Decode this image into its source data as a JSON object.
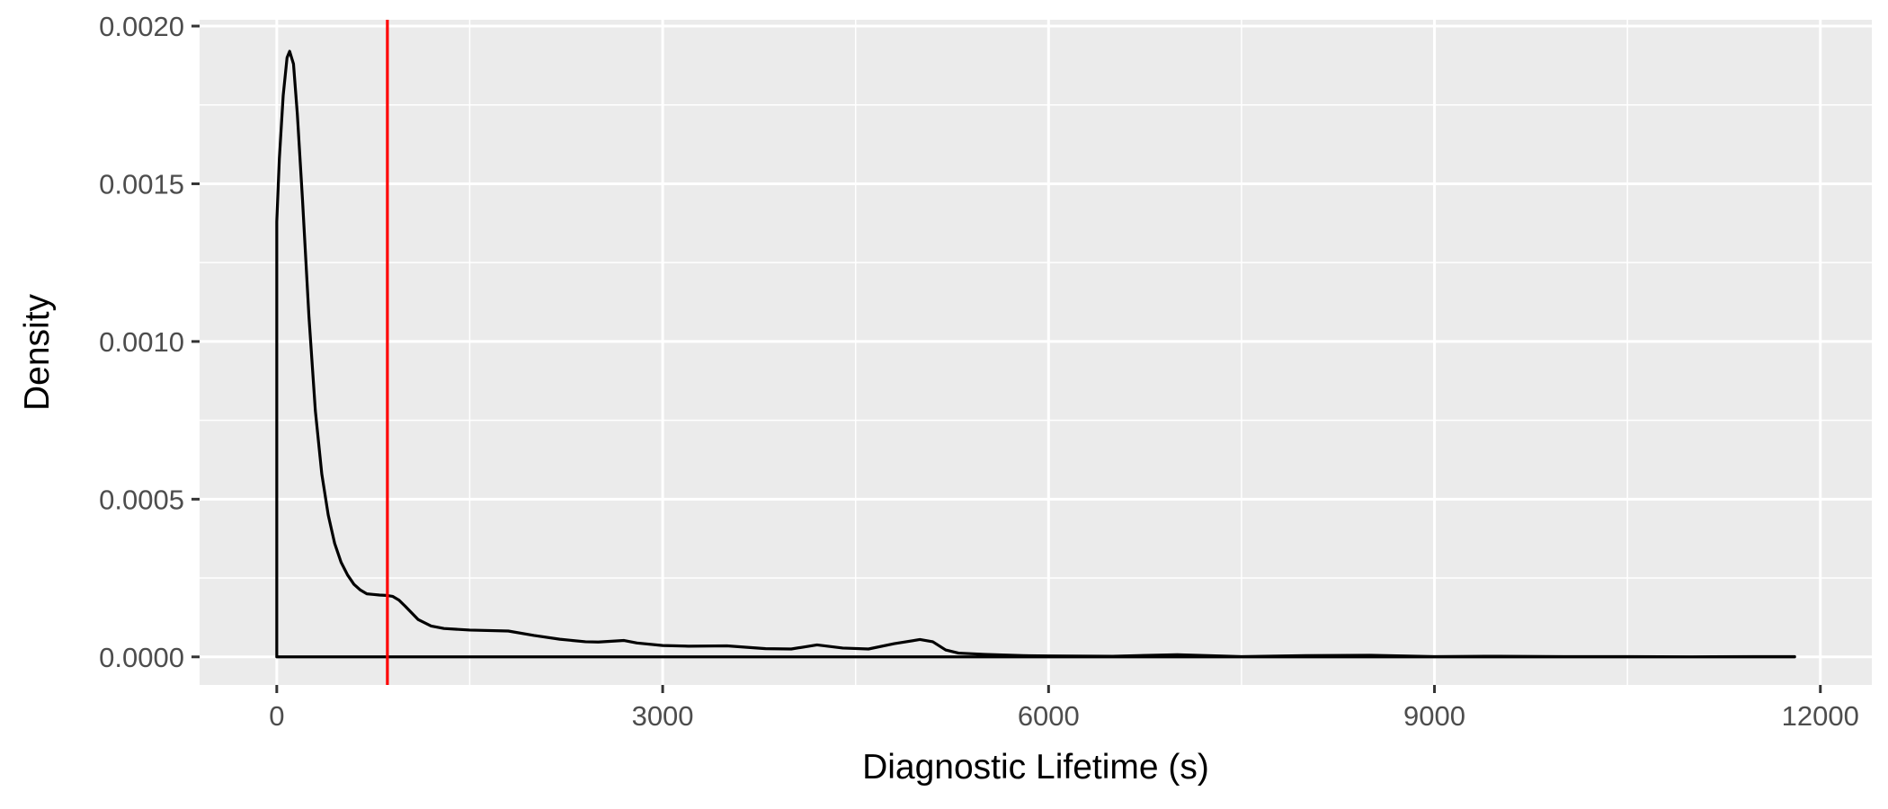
{
  "chart_data": {
    "type": "area",
    "title": "",
    "xlabel": "Diagnostic Lifetime (s)",
    "ylabel": "Density",
    "xlim": [
      -600,
      12400
    ],
    "ylim": [
      -8.9e-05,
      0.00202
    ],
    "x_ticks": [
      0,
      3000,
      6000,
      9000,
      12000
    ],
    "x_tick_labels": [
      "0",
      "3000",
      "6000",
      "9000",
      "12000"
    ],
    "y_ticks": [
      0,
      0.0005,
      0.001,
      0.0015,
      0.002
    ],
    "y_tick_labels": [
      "0.0000",
      "0.0005",
      "0.0010",
      "0.0015",
      "0.0020"
    ],
    "grid": true,
    "legend": "none",
    "colors": {
      "panel_background": "#ebebeb",
      "grid": "#ffffff",
      "density_line": "#000000",
      "reference_line": "#ff0000"
    },
    "reference_line": {
      "x": 860
    },
    "series": [
      {
        "x": [
          0,
          20,
          50,
          80,
          100,
          130,
          160,
          200,
          250,
          300,
          350,
          400,
          450,
          500,
          550,
          600,
          650,
          700,
          750,
          800,
          850,
          900,
          950,
          1000,
          1100,
          1200,
          1300,
          1500,
          1800,
          2000,
          2200,
          2400,
          2500,
          2700,
          2800,
          3000,
          3200,
          3500,
          3800,
          4000,
          4200,
          4400,
          4600,
          4800,
          5000,
          5100,
          5200,
          5300,
          5500,
          5800,
          6000,
          6500,
          7000,
          7500,
          8000,
          8500,
          9000,
          9500,
          10000,
          10500,
          11000,
          11500,
          11800
        ],
        "y": [
          0.00138,
          0.00158,
          0.00178,
          0.0019,
          0.00192,
          0.00188,
          0.00172,
          0.00145,
          0.00108,
          0.00078,
          0.00058,
          0.00045,
          0.00036,
          0.0003,
          0.00026,
          0.00023,
          0.000212,
          0.0002,
          0.000198,
          0.000196,
          0.000195,
          0.000192,
          0.00018,
          0.00016,
          0.000118,
          9.8e-05,
          9e-05,
          8.5e-05,
          8.2e-05,
          6.8e-05,
          5.6e-05,
          4.8e-05,
          4.7e-05,
          5.2e-05,
          4.4e-05,
          3.6e-05,
          3.4e-05,
          3.5e-05,
          2.6e-05,
          2.5e-05,
          3.8e-05,
          2.8e-05,
          2.5e-05,
          4.2e-05,
          5.5e-05,
          4.8e-05,
          2.2e-05,
          1.2e-05,
          8e-06,
          4e-06,
          3e-06,
          2e-06,
          7e-06,
          1e-06,
          4e-06,
          5e-06,
          1e-06,
          2e-06,
          1e-06,
          1e-06,
          0.0,
          1e-06,
          1e-06
        ]
      }
    ]
  }
}
